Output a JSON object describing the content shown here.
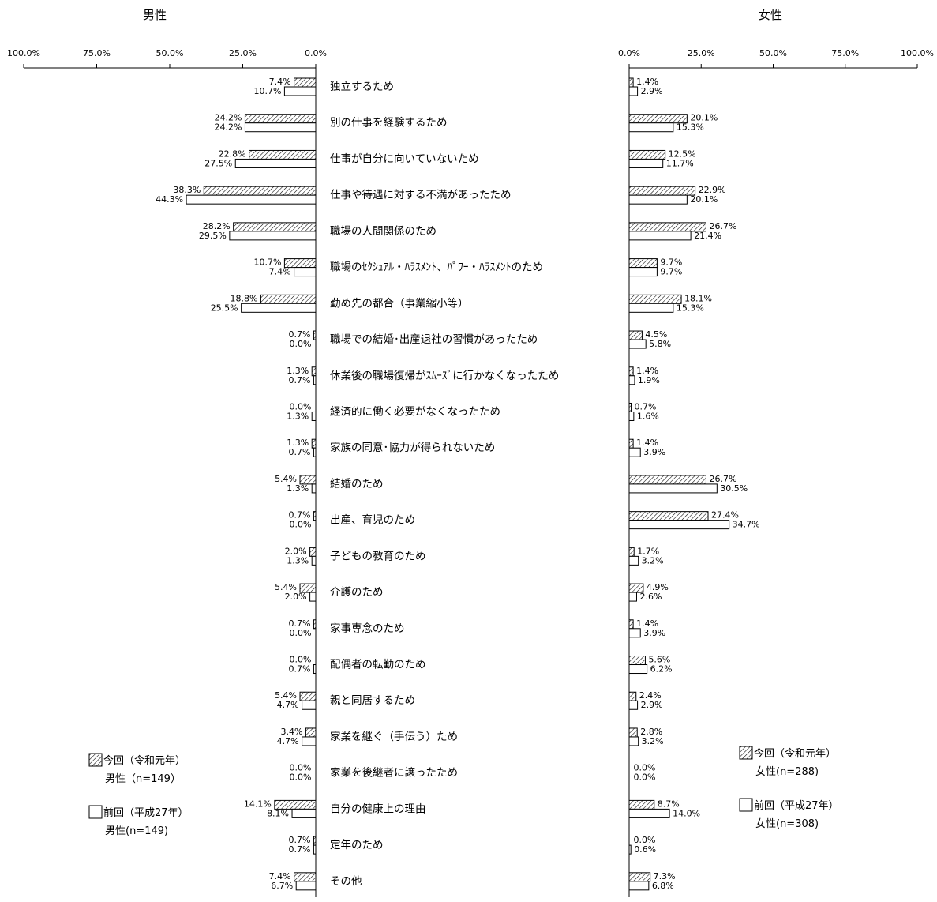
{
  "chart_data": {
    "type": "bar",
    "orientation": "horizontal",
    "tick_labels": [
      "0.0%",
      "25.0%",
      "50.0%",
      "75.0%",
      "100.0%"
    ],
    "xlim": [
      0,
      100
    ],
    "categories": [
      "独立するため",
      "別の仕事を経験するため",
      "仕事が自分に向いていないため",
      "仕事や待遇に対する不満があったため",
      "職場の人間関係のため",
      "職場のｾｸｼｭｱﾙ・ﾊﾗｽﾒﾝﾄ、ﾊﾟﾜｰ・ﾊﾗｽﾒﾝﾄのため",
      "勤め先の都合（事業縮小等）",
      "職場での結婚･出産退社の習慣があったため",
      "休業後の職場復帰がｽﾑｰｽﾞに行かなくなったため",
      "経済的に働く必要がなくなったため",
      "家族の同意･協力が得られないため",
      "結婚のため",
      "出産、育児のため",
      "子どもの教育のため",
      "介護のため",
      "家事専念のため",
      "配偶者の転勤のため",
      "親と同居するため",
      "家業を継ぐ（手伝う）ため",
      "家業を後継者に譲ったため",
      "自分の健康上の理由",
      "定年のため",
      "その他"
    ],
    "panels": [
      {
        "title": "男性",
        "direction": "left",
        "series": [
          {
            "name": "今回（令和元年）",
            "pattern": "hatched",
            "values": [
              7.4,
              24.2,
              22.8,
              38.3,
              28.2,
              10.7,
              18.8,
              0.7,
              1.3,
              0.0,
              1.3,
              5.4,
              0.7,
              2.0,
              5.4,
              0.7,
              0.0,
              5.4,
              3.4,
              0.0,
              14.1,
              0.7,
              7.4
            ]
          },
          {
            "name": "前回（平成27年）",
            "pattern": "white",
            "values": [
              10.7,
              24.2,
              27.5,
              44.3,
              29.5,
              7.4,
              25.5,
              0.0,
              0.7,
              1.3,
              0.7,
              1.3,
              0.0,
              1.3,
              2.0,
              0.0,
              0.7,
              4.7,
              4.7,
              0.0,
              8.1,
              0.7,
              6.7
            ]
          }
        ],
        "legend": [
          {
            "label": "今回（令和元年）",
            "n": "男性（n=149）"
          },
          {
            "label": "前回（平成27年）",
            "n": "男性(n=149)"
          }
        ]
      },
      {
        "title": "女性",
        "direction": "right",
        "series": [
          {
            "name": "今回（令和元年）",
            "pattern": "hatched",
            "values": [
              1.4,
              20.1,
              12.5,
              22.9,
              26.7,
              9.7,
              18.1,
              4.5,
              1.4,
              0.7,
              1.4,
              26.7,
              27.4,
              1.7,
              4.9,
              1.4,
              5.6,
              2.4,
              2.8,
              0.0,
              8.7,
              0.0,
              7.3
            ]
          },
          {
            "name": "前回（平成27年）",
            "pattern": "white",
            "values": [
              2.9,
              15.3,
              11.7,
              20.1,
              21.4,
              9.7,
              15.3,
              5.8,
              1.9,
              1.6,
              3.9,
              30.5,
              34.7,
              3.2,
              2.6,
              3.9,
              6.2,
              2.9,
              3.2,
              0.0,
              14.0,
              0.6,
              6.8
            ]
          }
        ],
        "legend": [
          {
            "label": "今回（令和元年）",
            "n": "女性(n=288)"
          },
          {
            "label": "前回（平成27年）",
            "n": "女性(n=308)"
          }
        ]
      }
    ]
  }
}
